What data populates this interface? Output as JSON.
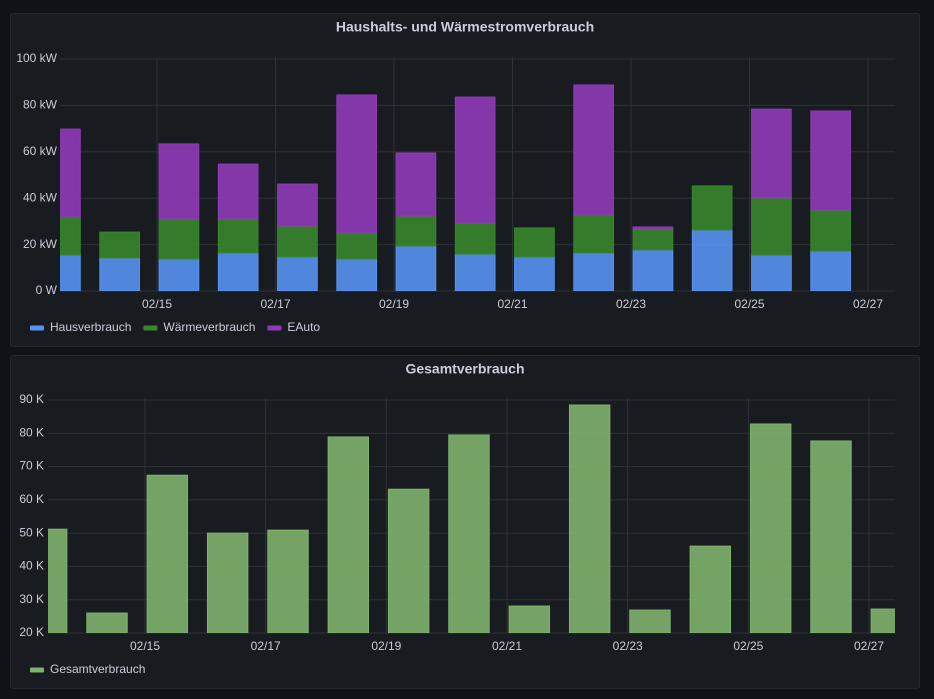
{
  "chart_data": [
    {
      "type": "bar",
      "stacked": true,
      "title": "Haushalts- und Wärmestromverbrauch",
      "x": [
        "02/13",
        "02/14",
        "02/15",
        "02/16",
        "02/17",
        "02/18",
        "02/19",
        "02/20",
        "02/21",
        "02/22",
        "02/23",
        "02/24",
        "02/25",
        "02/26"
      ],
      "series": [
        {
          "name": "Hausverbrauch",
          "color": "#5794f2",
          "values": [
            15.5,
            14.2,
            13.8,
            16.4,
            14.7,
            13.8,
            19.4,
            15.9,
            14.7,
            16.4,
            17.7,
            26.3,
            15.5,
            17.2
          ]
        },
        {
          "name": "Wärmeverbrauch",
          "color": "#37872d",
          "values": [
            16.4,
            11.2,
            17.2,
            14.6,
            13.3,
            11.2,
            12.9,
            13.4,
            12.5,
            16.4,
            9.0,
            19.0,
            24.6,
            17.7
          ]
        },
        {
          "name": "EAuto",
          "color": "#8f3bb8",
          "values": [
            37.9,
            0,
            32.4,
            23.7,
            18.1,
            59.5,
            27.2,
            54.3,
            0,
            56.0,
            0.9,
            0,
            38.3,
            42.7
          ]
        }
      ],
      "ylim": [
        0,
        100
      ],
      "yticks": [
        {
          "value": 0,
          "label": "0 W"
        },
        {
          "value": 20,
          "label": "20 kW"
        },
        {
          "value": 40,
          "label": "40 kW"
        },
        {
          "value": 60,
          "label": "60 kW"
        },
        {
          "value": 80,
          "label": "80 kW"
        },
        {
          "value": 100,
          "label": "100 kW"
        }
      ],
      "xticks": [
        "02/15",
        "02/17",
        "02/19",
        "02/21",
        "02/23",
        "02/25",
        "02/27"
      ],
      "grid": true,
      "legend": "bottom-left"
    },
    {
      "type": "bar",
      "stacked": false,
      "title": "Gesamtverbrauch",
      "x": [
        "02/13",
        "02/14",
        "02/15",
        "02/16",
        "02/17",
        "02/18",
        "02/19",
        "02/20",
        "02/21",
        "02/22",
        "02/23",
        "02/24",
        "02/25",
        "02/26",
        "02/27"
      ],
      "series": [
        {
          "name": "Gesamtverbrauch",
          "color": "#7eb26d",
          "values": [
            51200,
            26000,
            67400,
            50000,
            50900,
            78900,
            63200,
            79500,
            28100,
            88500,
            26900,
            46100,
            82800,
            77700,
            27200
          ]
        }
      ],
      "ylim": [
        20000,
        90000
      ],
      "yticks": [
        {
          "value": 20000,
          "label": "20 K"
        },
        {
          "value": 30000,
          "label": "30 K"
        },
        {
          "value": 40000,
          "label": "40 K"
        },
        {
          "value": 50000,
          "label": "50 K"
        },
        {
          "value": 60000,
          "label": "60 K"
        },
        {
          "value": 70000,
          "label": "70 K"
        },
        {
          "value": 80000,
          "label": "80 K"
        },
        {
          "value": 90000,
          "label": "90 K"
        }
      ],
      "xticks": [
        "02/15",
        "02/17",
        "02/19",
        "02/21",
        "02/23",
        "02/25",
        "02/27"
      ],
      "grid": true,
      "legend": "bottom-left"
    }
  ]
}
